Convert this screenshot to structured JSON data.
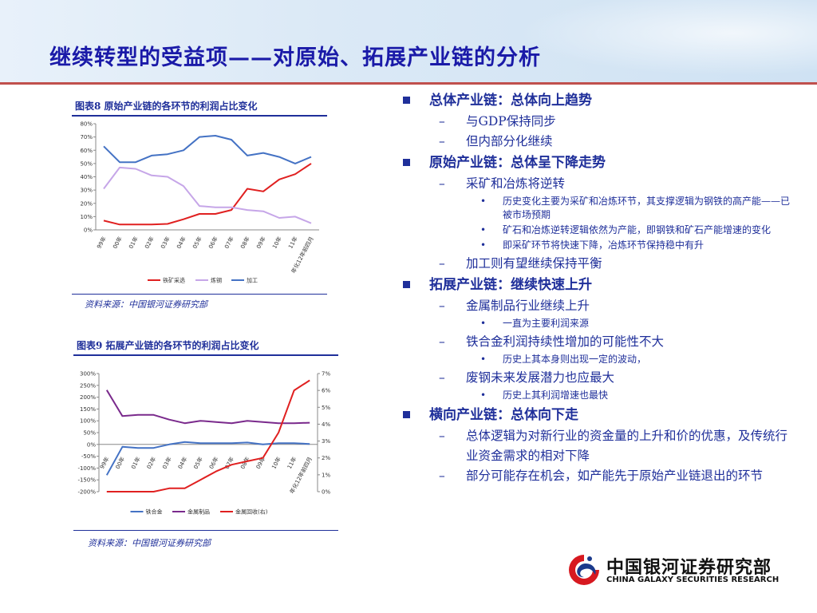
{
  "slide": {
    "title": "继续转型的受益项——对原始、拓展产业链的分析"
  },
  "figure8": {
    "caption": "图表8  原始产业链的各环节的利润占比变化",
    "source": "资料来源：中国银河证券研究部"
  },
  "figure9": {
    "caption": "图表9  拓展产业链的各环节的利润占比变化",
    "source": "资料来源：中国银河证券研究部"
  },
  "chart_data": [
    {
      "type": "line",
      "categories": [
        "99年",
        "00年",
        "01年",
        "02年",
        "03年",
        "04年",
        "05年",
        "06年",
        "07年",
        "08年",
        "09年",
        "10年",
        "11年",
        "年化12年前四月"
      ],
      "series": [
        {
          "name": "铁矿采选",
          "color": "#e02020",
          "values": [
            7,
            4,
            4,
            4,
            4.5,
            8,
            12,
            12,
            15,
            31,
            29,
            38,
            42,
            50
          ]
        },
        {
          "name": "炼钢",
          "color": "#c6a6e8",
          "values": [
            31,
            47,
            46,
            41,
            40,
            33,
            18,
            17,
            17,
            15,
            14,
            9,
            10,
            5
          ]
        },
        {
          "name": "加工",
          "color": "#4472c4",
          "values": [
            63,
            51,
            51,
            56,
            57,
            60,
            70,
            71,
            68,
            56,
            58,
            55,
            50,
            55
          ]
        }
      ],
      "ylim": [
        0,
        80
      ],
      "yticks": [
        "0%",
        "10%",
        "20%",
        "30%",
        "40%",
        "50%",
        "60%",
        "70%",
        "80%"
      ],
      "legend": "bottom"
    },
    {
      "type": "line",
      "categories": [
        "99年",
        "00年",
        "01年",
        "02年",
        "03年",
        "04年",
        "05年",
        "06年",
        "07年",
        "08年",
        "09年",
        "10年",
        "11年",
        "年化12年前四月"
      ],
      "series": [
        {
          "name": "铁合金",
          "color": "#4472c4",
          "axis": "left",
          "values": [
            -130,
            -10,
            -15,
            -15,
            0,
            10,
            5,
            5,
            5,
            8,
            0,
            5,
            5,
            2
          ]
        },
        {
          "name": "金属制品",
          "color": "#7a2a8c",
          "axis": "left",
          "values": [
            230,
            120,
            125,
            125,
            105,
            90,
            100,
            95,
            90,
            100,
            95,
            90,
            90,
            92
          ]
        },
        {
          "name": "金属回收(右)",
          "color": "#e02020",
          "axis": "right",
          "values": [
            0,
            0,
            0,
            0,
            0.2,
            0.2,
            0.7,
            1.2,
            1.6,
            1.8,
            2.0,
            3.5,
            6.0,
            6.6
          ]
        }
      ],
      "ylim": [
        -200,
        300
      ],
      "yticks": [
        "300%",
        "250%",
        "200%",
        "150%",
        "100%",
        "50%",
        "0%",
        "-50%",
        "-100%",
        "-150%",
        "-200%"
      ],
      "y2lim": [
        0,
        7
      ],
      "y2ticks": [
        "7%",
        "6%",
        "5%",
        "4%",
        "3%",
        "2%",
        "1%",
        "0%"
      ],
      "legend": "bottom"
    }
  ],
  "bullets": [
    {
      "level": 1,
      "text": "总体产业链：总体向上趋势"
    },
    {
      "level": 2,
      "text": "与GDP保持同步"
    },
    {
      "level": 2,
      "text": "但内部分化继续"
    },
    {
      "level": 1,
      "text": "原始产业链：总体呈下降走势"
    },
    {
      "level": 2,
      "text": "采矿和冶炼将逆转"
    },
    {
      "level": 3,
      "text": "历史变化主要为采矿和冶炼环节，其支撑逻辑为钢铁的高产能——已被市场预期"
    },
    {
      "level": 3,
      "text": "矿石和冶炼逆转逻辑依然为产能，即钢铁和矿石产能增速的变化"
    },
    {
      "level": 3,
      "text": "即采矿环节将快速下降，冶炼环节保持稳中有升"
    },
    {
      "level": 2,
      "text": "加工则有望继续保持平衡"
    },
    {
      "level": 1,
      "text": "拓展产业链：继续快速上升"
    },
    {
      "level": 2,
      "text": "金属制品行业继续上升"
    },
    {
      "level": 3,
      "text": "一直为主要利润来源"
    },
    {
      "level": 2,
      "text": "铁合金利润持续性增加的可能性不大"
    },
    {
      "level": 3,
      "text": "历史上其本身则出现一定的波动，"
    },
    {
      "level": 2,
      "text": "废钢未来发展潜力也应最大"
    },
    {
      "level": 3,
      "text": "历史上其利润增速也最快"
    },
    {
      "level": 1,
      "text": "横向产业链：总体向下走"
    },
    {
      "level": 2,
      "text": "总体逻辑为对新行业的资金量的上升和价的优惠，及传统行业资金需求的相对下降"
    },
    {
      "level": 2,
      "text": "部分可能存在机会，如产能先于原始产业链退出的环节"
    }
  ],
  "logo": {
    "cn": "中国银河证券研究部",
    "en": "CHINA GALAXY SECURITIES RESEARCH",
    "colors": {
      "red": "#d71920",
      "blue": "#1b3a8c"
    }
  },
  "colors": {
    "title": "#1a1aa8",
    "text": "#1f2f9a",
    "rule": "#c0504d"
  }
}
